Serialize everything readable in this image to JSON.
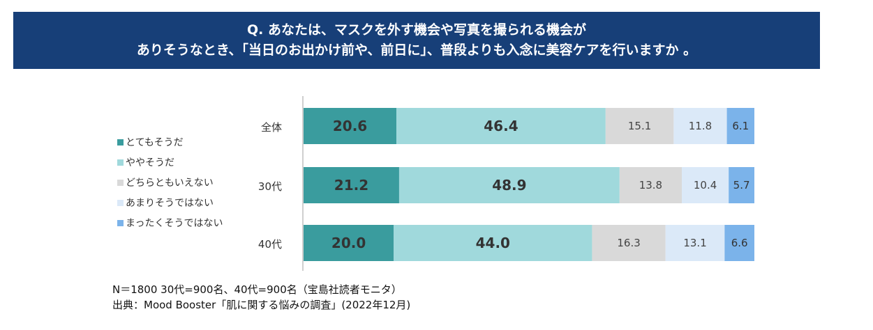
{
  "title": {
    "line1": "Q. あなたは、マスクを外す機会や写真を撮られる機会が",
    "line2": "ありそうなとき、「当日のお出かけ前や、前日に」、普段よりも入念に美容ケアを行いますか 。"
  },
  "chart_data": {
    "type": "bar",
    "orientation": "horizontal",
    "stacked": "percent",
    "categories": [
      "全体",
      "30代",
      "40代"
    ],
    "series": [
      {
        "name": "とてもそうだ",
        "color": "#3a9c9e",
        "values": [
          20.6,
          21.2,
          20.0
        ]
      },
      {
        "name": "ややそうだ",
        "color": "#a0d9dc",
        "values": [
          46.4,
          48.9,
          44.0
        ]
      },
      {
        "name": "どちらともいえない",
        "color": "#d9d9d9",
        "values": [
          15.1,
          13.8,
          16.3
        ]
      },
      {
        "name": "あまりそうではない",
        "color": "#dbe9f8",
        "values": [
          11.8,
          10.4,
          13.1
        ]
      },
      {
        "name": "まったくそうではない",
        "color": "#7bb3ea",
        "values": [
          6.1,
          5.7,
          6.6
        ]
      }
    ],
    "xlim": [
      0,
      100
    ],
    "legend": "left"
  },
  "notes": {
    "sample": "N＝1800 30代=900名、40代=900名（宝島社読者モニタ）",
    "source": "出典：Mood Booster「肌に関する悩みの調査」(2022年12月)"
  }
}
